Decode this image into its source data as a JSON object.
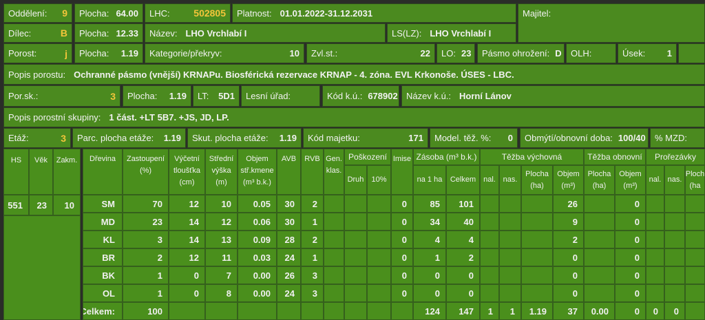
{
  "header": {
    "rows": [
      [
        {
          "label": "Oddělení:",
          "value": "9"
        },
        {
          "label": "Plocha:",
          "value": "64.00"
        },
        {
          "label": "LHC:",
          "value": "502805"
        },
        {
          "label": "Platnost:",
          "value": "01.01.2022-31.12.2031"
        },
        {
          "label": "Majitel:"
        }
      ],
      [
        {
          "label": "Dílec:",
          "value": "B"
        },
        {
          "label": "Plocha:",
          "value": "12.33"
        },
        {
          "label": "Název:",
          "value": "LHO Vrchlabí I"
        },
        {
          "label": "LS(LZ):",
          "value": "LHO Vrchlabí I"
        }
      ],
      [
        {
          "label": "Porost:",
          "value": "j"
        },
        {
          "label": "Plocha:",
          "value": "1.19"
        },
        {
          "label": "Kategorie/překryv:",
          "value": "10"
        },
        {
          "label": "Zvl.st.:",
          "value": "22"
        },
        {
          "label": "LO:",
          "value": "23"
        },
        {
          "label": "Pásmo ohrožení:",
          "value": "D"
        },
        {
          "label": "OLH:"
        },
        {
          "label": "Úsek:",
          "value": "1"
        }
      ],
      [
        {
          "label": "Popis porostu:",
          "value": "Ochranné pásmo (vnější) KRNAPu. Biosférická rezervace KRNAP - 4. zóna. EVL Krkonoše. ÚSES - LBC."
        }
      ],
      [
        {
          "label": "Por.sk.:",
          "value": "3"
        },
        {
          "label": "Plocha:",
          "value": "1.19"
        },
        {
          "label": "LT:",
          "value": "5D1"
        },
        {
          "label": "Lesní úřad:"
        },
        {
          "label": "Kód k.ú.:",
          "value": "678902"
        },
        {
          "label": "Název k.ú.:",
          "value": "Horní Lánov"
        }
      ],
      [
        {
          "label": "Popis porostní skupiny:",
          "value": "1 část. +LT 5B7. +JS, JD, LP."
        }
      ],
      [
        {
          "label": "Etáž:",
          "value": "3"
        },
        {
          "label": "Parc. plocha etáže:",
          "value": "1.19"
        },
        {
          "label": "Skut. plocha etáže:",
          "value": "1.19"
        },
        {
          "label": "Kód majetku:",
          "value": "171"
        },
        {
          "label": "Model. těž. %:",
          "value": "0"
        },
        {
          "label": "Obmýtí/obnovní doba:",
          "value": "100/40"
        },
        {
          "label": "% MZD:"
        }
      ]
    ]
  },
  "stand_table": {
    "headers": [
      "HS",
      "Věk",
      "Zakm."
    ],
    "row": [
      "551",
      "23",
      "10"
    ]
  },
  "table": {
    "groups": [
      "Poškození",
      "Zásoba (m³ b.k.)",
      "Těžba výchovná",
      "Těžba obnovní",
      "Prořezávky"
    ],
    "columns": [
      [
        "Dřevina"
      ],
      [
        "Zastoupení",
        "(%)"
      ],
      [
        "Výčetní",
        "tloušťka",
        "(cm)"
      ],
      [
        "Střední",
        "výška",
        "(m)"
      ],
      [
        "Objem",
        "stř.kmene",
        "(m³ b.k.)"
      ],
      [
        "AVB"
      ],
      [
        "RVB"
      ],
      [
        "Gen.",
        "klas."
      ],
      [
        "Druh"
      ],
      [
        "10%"
      ],
      [
        "Imise"
      ],
      [
        "na 1 ha"
      ],
      [
        "Celkem"
      ],
      [
        "nal."
      ],
      [
        "nas."
      ],
      [
        "Plocha",
        "(ha)"
      ],
      [
        "Objem",
        "(m³)"
      ],
      [
        "Plocha",
        "(ha)"
      ],
      [
        "Objem",
        "(m³)"
      ],
      [
        "nal."
      ],
      [
        "nas."
      ],
      [
        "Ploch",
        "(ha"
      ]
    ],
    "rows": [
      [
        "SM",
        "70",
        "12",
        "10",
        "0.05",
        "30",
        "2",
        null,
        null,
        null,
        "0",
        "85",
        "101",
        null,
        null,
        null,
        "26",
        null,
        "0",
        null,
        null,
        null
      ],
      [
        "MD",
        "23",
        "14",
        "12",
        "0.06",
        "30",
        "1",
        null,
        null,
        null,
        "0",
        "34",
        "40",
        null,
        null,
        null,
        "9",
        null,
        "0",
        null,
        null,
        null
      ],
      [
        "KL",
        "3",
        "14",
        "13",
        "0.09",
        "28",
        "2",
        null,
        null,
        null,
        "0",
        "4",
        "4",
        null,
        null,
        null,
        "2",
        null,
        "0",
        null,
        null,
        null
      ],
      [
        "BR",
        "2",
        "12",
        "11",
        "0.03",
        "24",
        "1",
        null,
        null,
        null,
        "0",
        "1",
        "2",
        null,
        null,
        null,
        "0",
        null,
        "0",
        null,
        null,
        null
      ],
      [
        "BK",
        "1",
        "0",
        "7",
        "0.00",
        "26",
        "3",
        null,
        null,
        null,
        "0",
        "0",
        "0",
        null,
        null,
        null,
        "0",
        null,
        "0",
        null,
        null,
        null
      ],
      [
        "OL",
        "1",
        "0",
        "8",
        "0.00",
        "24",
        "3",
        null,
        null,
        null,
        "0",
        "0",
        "0",
        null,
        null,
        null,
        "0",
        null,
        "0",
        null,
        null,
        null
      ],
      [
        "Celkem:",
        "100",
        null,
        null,
        null,
        null,
        null,
        null,
        null,
        null,
        null,
        "124",
        "147",
        "1",
        "1",
        "1.19",
        "37",
        "0.00",
        "0",
        "0",
        "0",
        null
      ]
    ]
  }
}
